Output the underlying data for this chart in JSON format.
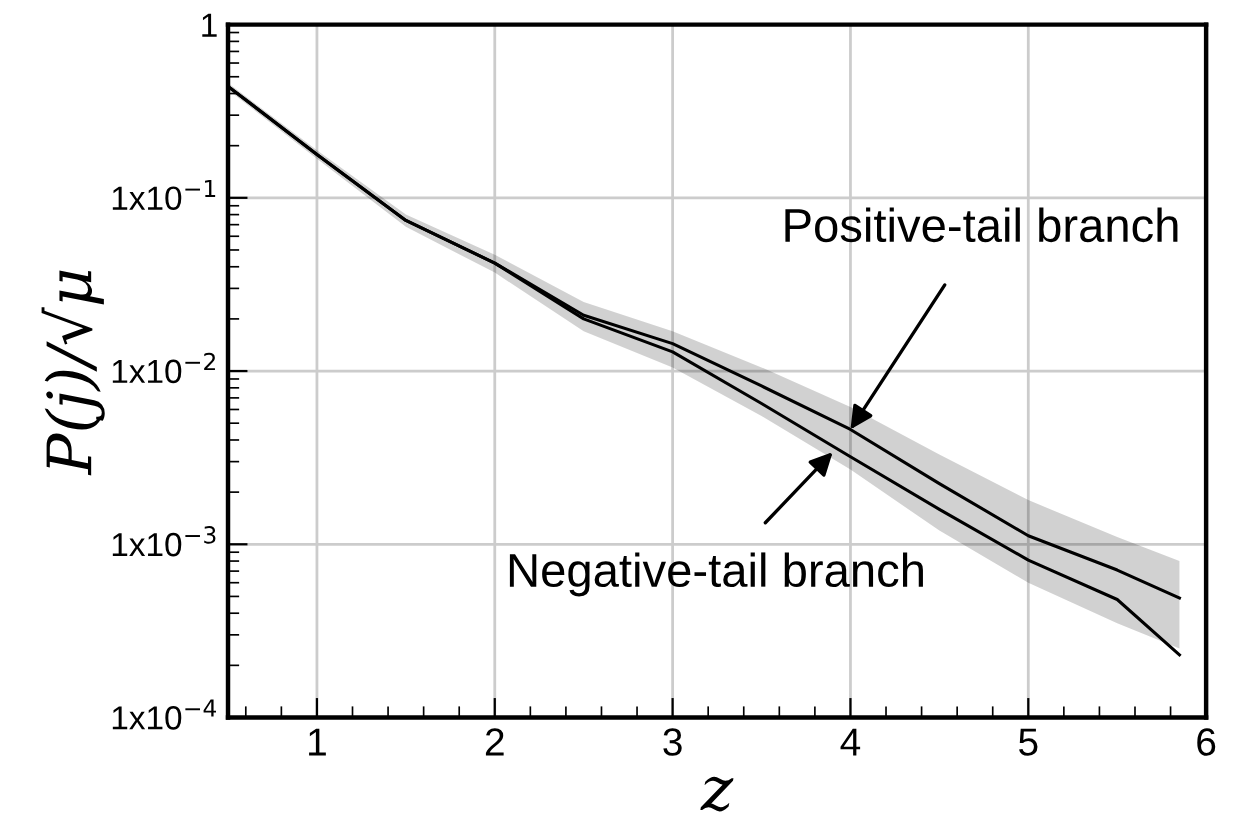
{
  "chart_data": {
    "type": "line",
    "xlabel": "z",
    "ylabel": "P(j)/√μ",
    "log": "y",
    "grid": true,
    "legend": false,
    "marker": "none",
    "line_style": "solid",
    "xlim": [
      0.5,
      6
    ],
    "xticks": [
      1,
      2,
      3,
      4,
      5,
      6
    ],
    "ylim": [
      0.0001,
      1
    ],
    "yticks": [
      {
        "value": 0.0001,
        "label": "1x10$^{−4}$"
      },
      {
        "value": 0.001,
        "label": "1x10$^{−3}$"
      },
      {
        "value": 0.01,
        "label": "1x10$^{−2}$"
      },
      {
        "value": 0.1,
        "label": "1x10$^{−1}$"
      },
      1
    ],
    "series": [
      {
        "color": "#000000",
        "x": [
          0.5,
          1,
          1.5,
          2,
          2.5,
          3,
          3.5,
          4,
          4.5,
          5,
          5.5,
          5.85
        ],
        "values": [
          0.44,
          0.178,
          0.074,
          0.042,
          0.021,
          0.0144,
          0.0082,
          0.0046,
          0.00224,
          0.00112,
          0.00071,
          0.00049
        ],
        "lower": [
          0.42,
          0.168,
          0.068,
          0.037,
          0.017,
          0.0105,
          0.0055,
          0.0027,
          0.0012,
          0.0006,
          0.00035,
          0.00025
        ],
        "upper": [
          0.46,
          0.188,
          0.08,
          0.047,
          0.025,
          0.017,
          0.0105,
          0.0062,
          0.0033,
          0.0018,
          0.0011,
          0.0008
        ]
      },
      {
        "color": "#000000",
        "x": [
          0.5,
          1,
          1.5,
          2,
          2.5,
          3,
          3.5,
          4,
          4.5,
          5,
          5.5,
          5.85
        ],
        "values": [
          0.44,
          0.178,
          0.074,
          0.042,
          0.02,
          0.0129,
          0.0065,
          0.0032,
          0.00159,
          0.00081,
          0.00048,
          0.00023
        ]
      }
    ],
    "annotations": [
      {
        "text": "Positive-tail branch",
        "x": 4,
        "y": 0.0046
      },
      {
        "text": "Negative-tail branch",
        "x": 3.9,
        "y": 0.0034
      }
    ]
  }
}
